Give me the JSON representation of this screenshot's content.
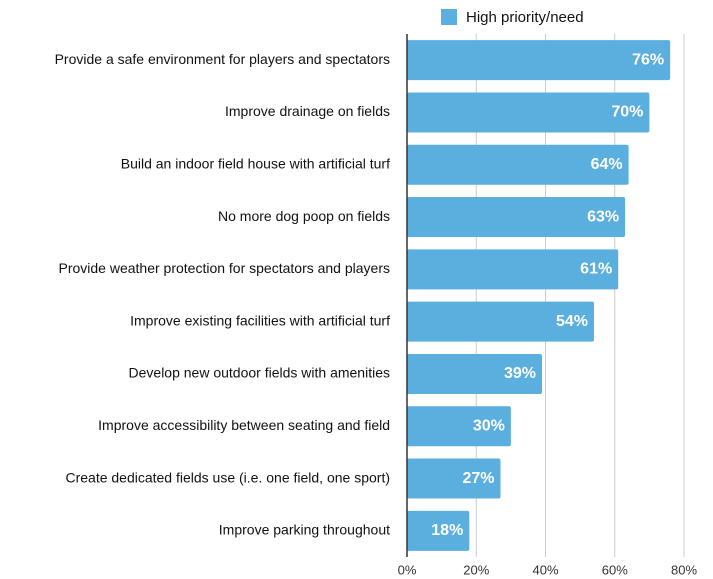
{
  "chart_data": {
    "type": "hbar",
    "categories": [
      "Provide a safe environment for players and spectators",
      "Improve drainage on fields",
      "Build an indoor field house with artificial turf",
      "No more dog poop on fields",
      "Provide weather protection for spectators and players",
      "Improve existing facilities with artificial turf",
      "Develop new outdoor fields with amenities",
      "Improve accessibility between seating and field",
      "Create dedicated fields use (i.e. one field, one sport)",
      "Improve parking throughout"
    ],
    "series": [
      {
        "name": "High priority/need",
        "color": "#5aafdf",
        "values": [
          76,
          70,
          64,
          63,
          61,
          54,
          39,
          30,
          27,
          18
        ],
        "value_labels": [
          "76%",
          "70%",
          "64%",
          "63%",
          "61%",
          "54%",
          "39%",
          "30%",
          "27%",
          "18%"
        ]
      }
    ],
    "xlim": [
      0,
      80
    ],
    "xticks": [
      {
        "value": 0,
        "label": "0%"
      },
      {
        "value": 20,
        "label": "20%"
      },
      {
        "value": 40,
        "label": "40%"
      },
      {
        "value": 60,
        "label": "60%"
      },
      {
        "value": 80,
        "label": "80%"
      }
    ],
    "grid": true,
    "legend": "top"
  }
}
